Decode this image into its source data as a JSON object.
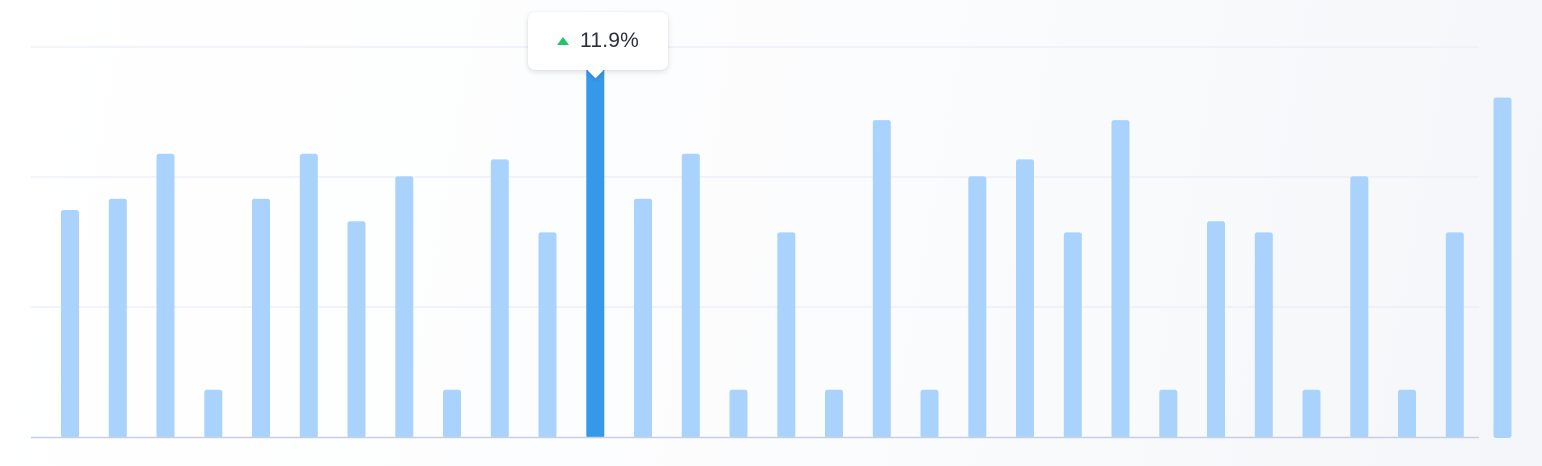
{
  "chart_data": {
    "type": "bar",
    "values": [
      290,
      300,
      340,
      130,
      300,
      340,
      280,
      320,
      130,
      335,
      270,
      420,
      300,
      340,
      130,
      270,
      130,
      370,
      130,
      320,
      335,
      270,
      370,
      130,
      280,
      270,
      130,
      320,
      130,
      270,
      390
    ],
    "ylim": [
      88,
      435
    ],
    "highlight_index": 11,
    "grid": true,
    "colors": {
      "bar": "#a9d3fc",
      "bar_highlight": "#3698e8",
      "grid": "#e9edf6",
      "baseline": "#c6d0e2",
      "guide": "#c8ccd4"
    }
  },
  "tooltip": {
    "icon": "triangle-up-icon",
    "value": "11.9%",
    "icon_color": "#1fc36a"
  }
}
